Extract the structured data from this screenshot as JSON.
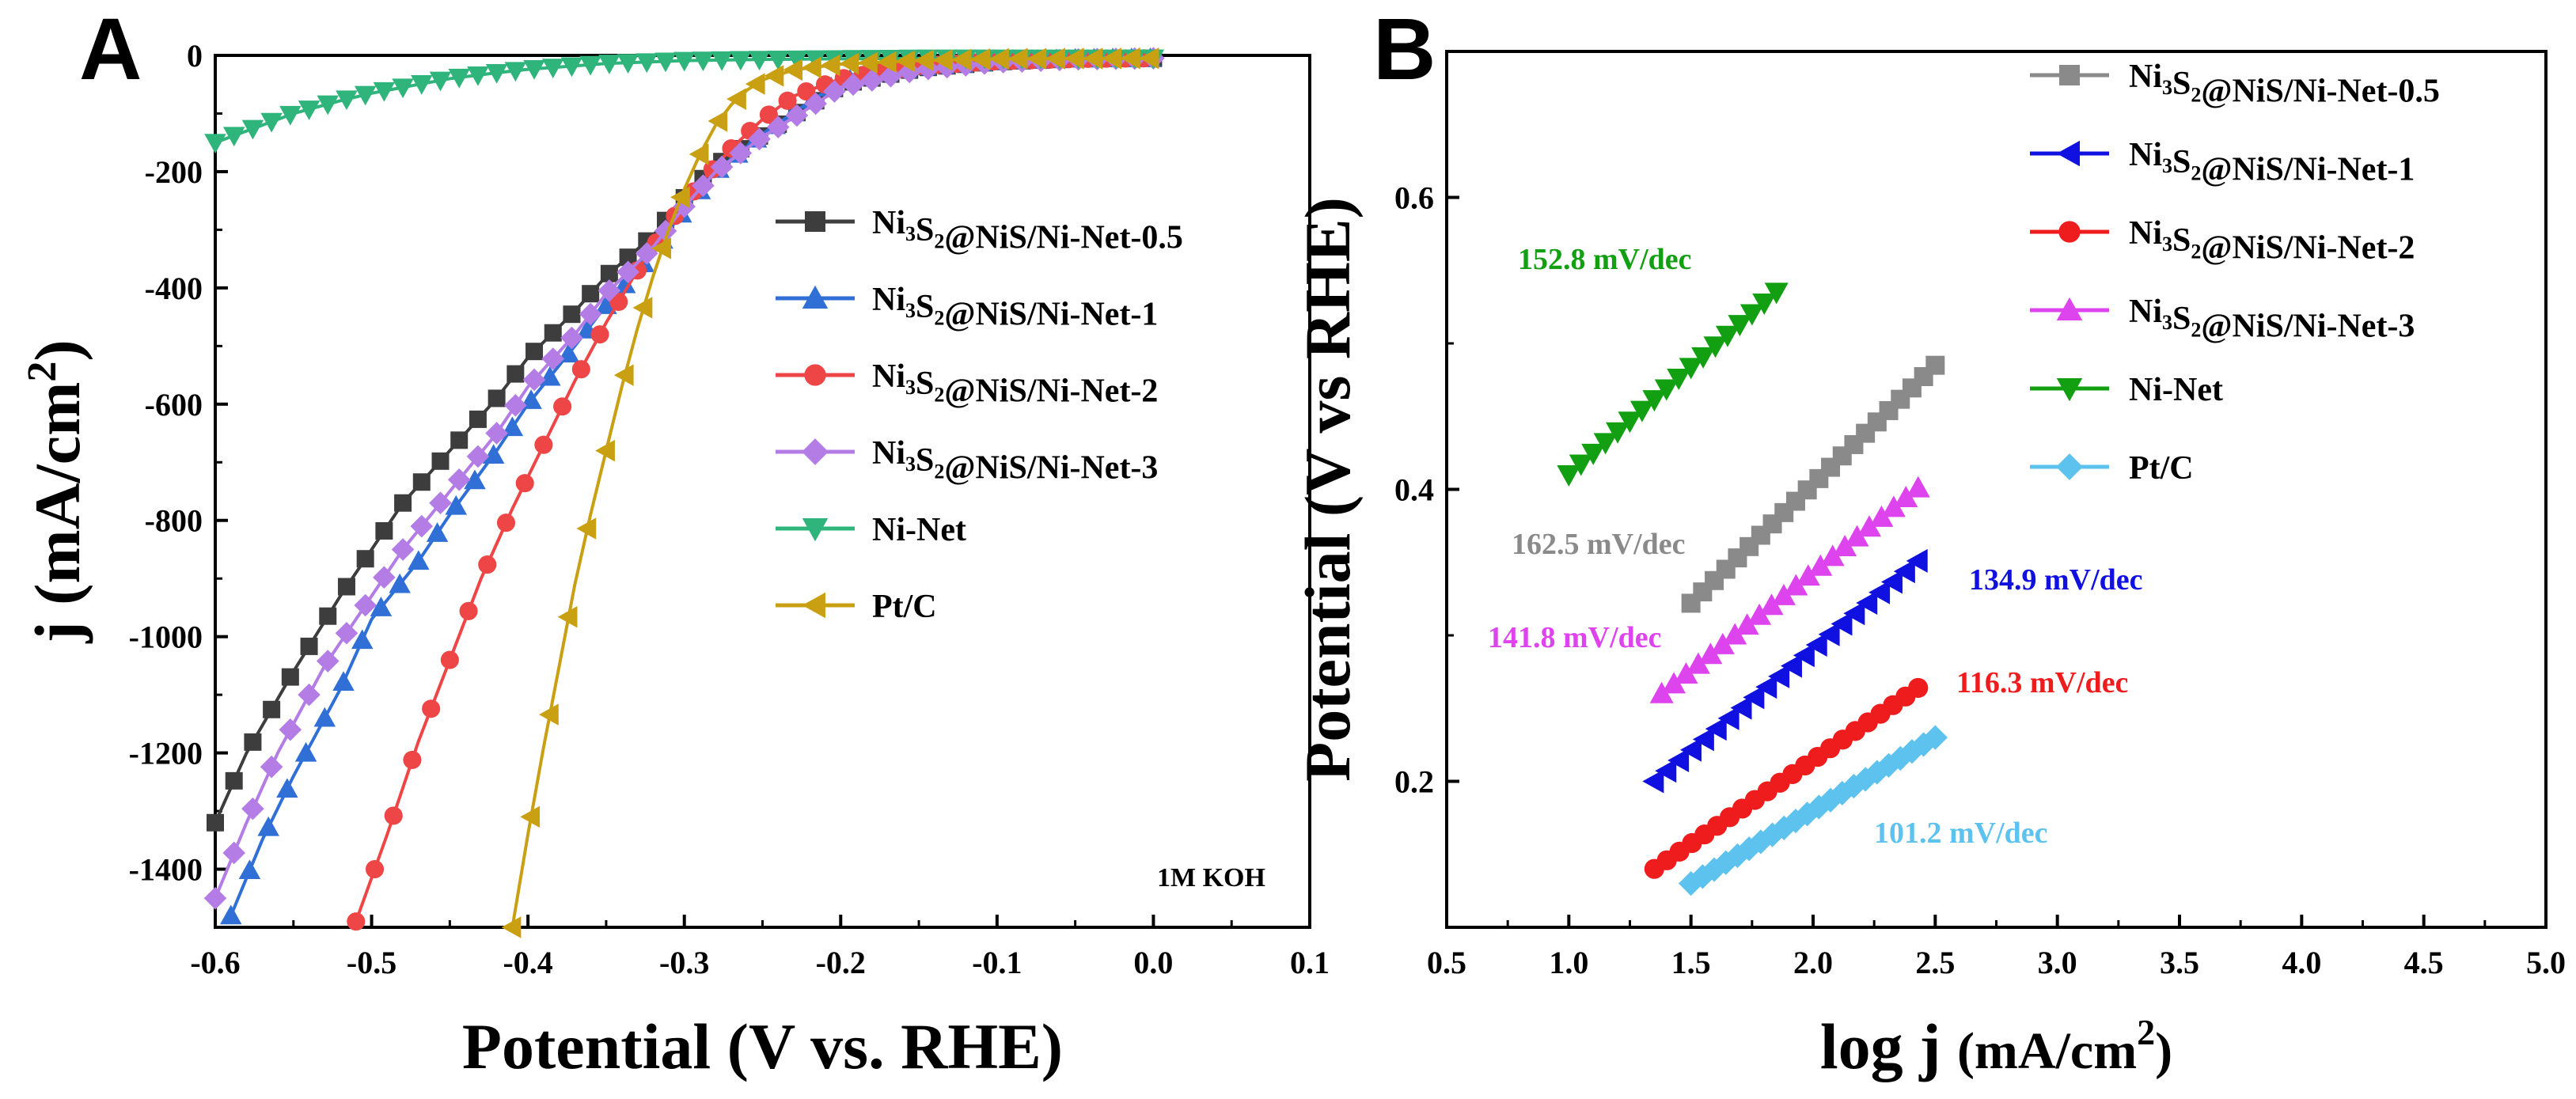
{
  "chart_data": [
    {
      "panel": "A",
      "type": "line",
      "xlabel": "Potential (V vs. RHE)",
      "ylabel": {
        "base": "j (mA/cm",
        "sup": "2",
        "tail": ")"
      },
      "xlim": [
        -0.6,
        0.1
      ],
      "ylim": [
        -1500,
        0
      ],
      "xticks": [
        -0.6,
        -0.5,
        -0.4,
        -0.3,
        -0.2,
        -0.1,
        0.0,
        0.1
      ],
      "xtick_labels": [
        "-0.6",
        "-0.5",
        "-0.4",
        "-0.3",
        "-0.2",
        "-0.1",
        "0.0",
        "0.1"
      ],
      "yticks": [
        0,
        -200,
        -400,
        -600,
        -800,
        -1000,
        -1200,
        -1400
      ],
      "ytick_labels": [
        "0",
        "-200",
        "-400",
        "-600",
        "-800",
        "-1000",
        "-1200",
        "-1400"
      ],
      "annotation": "1M KOH",
      "legend_position": "right-middle",
      "series": [
        {
          "name": "Ni3S2@NiS/Ni-Net-0.5",
          "legend": {
            "a": "Ni",
            "s1": "3",
            "b": "S",
            "s2": "2",
            "c": "@NiS/Ni-Net-0.5"
          },
          "color": "#3d3d3d",
          "marker": "square",
          "points": [
            [
              -0.6,
              -1320
            ],
            [
              -0.58,
              -1200
            ],
            [
              -0.55,
              -1060
            ],
            [
              -0.52,
              -930
            ],
            [
              -0.5,
              -850
            ],
            [
              -0.48,
              -770
            ],
            [
              -0.45,
              -680
            ],
            [
              -0.42,
              -590
            ],
            [
              -0.4,
              -520
            ],
            [
              -0.37,
              -440
            ],
            [
              -0.35,
              -380
            ],
            [
              -0.32,
              -310
            ],
            [
              -0.3,
              -245
            ],
            [
              -0.28,
              -190
            ],
            [
              -0.25,
              -135
            ],
            [
              -0.22,
              -85
            ],
            [
              -0.2,
              -50
            ],
            [
              -0.15,
              -22
            ],
            [
              -0.1,
              -11
            ],
            [
              -0.05,
              -6
            ],
            [
              0.0,
              -5
            ]
          ]
        },
        {
          "name": "Ni3S2@NiS/Ni-Net-1",
          "legend": {
            "a": "Ni",
            "s1": "3",
            "b": "S",
            "s2": "2",
            "c": "@NiS/Ni-Net-1"
          },
          "color": "#2f6fd6",
          "marker": "triangle-up",
          "points": [
            [
              -0.59,
              -1480
            ],
            [
              -0.57,
              -1350
            ],
            [
              -0.55,
              -1240
            ],
            [
              -0.52,
              -1090
            ],
            [
              -0.5,
              -970
            ],
            [
              -0.47,
              -870
            ],
            [
              -0.45,
              -790
            ],
            [
              -0.42,
              -680
            ],
            [
              -0.4,
              -600
            ],
            [
              -0.37,
              -500
            ],
            [
              -0.35,
              -430
            ],
            [
              -0.32,
              -340
            ],
            [
              -0.3,
              -265
            ],
            [
              -0.28,
              -200
            ],
            [
              -0.25,
              -135
            ],
            [
              -0.22,
              -80
            ],
            [
              -0.2,
              -45
            ],
            [
              -0.15,
              -20
            ],
            [
              -0.1,
              -10
            ],
            [
              -0.05,
              -6
            ],
            [
              0.0,
              -5
            ]
          ]
        },
        {
          "name": "Ni3S2@NiS/Ni-Net-2",
          "legend": {
            "a": "Ni",
            "s1": "3",
            "b": "S",
            "s2": "2",
            "c": "@NiS/Ni-Net-2"
          },
          "color": "#ee4646",
          "marker": "circle",
          "points": [
            [
              -0.51,
              -1490
            ],
            [
              -0.49,
              -1340
            ],
            [
              -0.47,
              -1180
            ],
            [
              -0.45,
              -1040
            ],
            [
              -0.43,
              -900
            ],
            [
              -0.41,
              -780
            ],
            [
              -0.39,
              -670
            ],
            [
              -0.37,
              -560
            ],
            [
              -0.35,
              -460
            ],
            [
              -0.33,
              -370
            ],
            [
              -0.31,
              -290
            ],
            [
              -0.29,
              -220
            ],
            [
              -0.27,
              -160
            ],
            [
              -0.25,
              -110
            ],
            [
              -0.23,
              -70
            ],
            [
              -0.2,
              -40
            ],
            [
              -0.15,
              -18
            ],
            [
              -0.1,
              -10
            ],
            [
              -0.05,
              -6
            ],
            [
              0.0,
              -5
            ]
          ]
        },
        {
          "name": "Ni3S2@NiS/Ni-Net-3",
          "legend": {
            "a": "Ni",
            "s1": "3",
            "b": "S",
            "s2": "2",
            "c": "@NiS/Ni-Net-3"
          },
          "color": "#b47de6",
          "marker": "diamond",
          "points": [
            [
              -0.6,
              -1450
            ],
            [
              -0.58,
              -1320
            ],
            [
              -0.56,
              -1200
            ],
            [
              -0.53,
              -1050
            ],
            [
              -0.5,
              -930
            ],
            [
              -0.48,
              -850
            ],
            [
              -0.45,
              -750
            ],
            [
              -0.42,
              -650
            ],
            [
              -0.4,
              -570
            ],
            [
              -0.37,
              -480
            ],
            [
              -0.35,
              -410
            ],
            [
              -0.32,
              -330
            ],
            [
              -0.3,
              -260
            ],
            [
              -0.28,
              -200
            ],
            [
              -0.25,
              -140
            ],
            [
              -0.22,
              -90
            ],
            [
              -0.2,
              -55
            ],
            [
              -0.15,
              -25
            ],
            [
              -0.1,
              -12
            ],
            [
              -0.05,
              -7
            ],
            [
              0.0,
              -5
            ]
          ]
        },
        {
          "name": "Ni-Net",
          "legend": {
            "a": "Ni-Net"
          },
          "color": "#2fb47c",
          "marker": "triangle-down",
          "points": [
            [
              -0.6,
              -150
            ],
            [
              -0.57,
              -120
            ],
            [
              -0.55,
              -100
            ],
            [
              -0.52,
              -78
            ],
            [
              -0.5,
              -65
            ],
            [
              -0.47,
              -50
            ],
            [
              -0.45,
              -40
            ],
            [
              -0.42,
              -30
            ],
            [
              -0.4,
              -24
            ],
            [
              -0.37,
              -18
            ],
            [
              -0.35,
              -14
            ],
            [
              -0.32,
              -11
            ],
            [
              -0.3,
              -9
            ],
            [
              -0.25,
              -7
            ],
            [
              -0.2,
              -6
            ],
            [
              -0.15,
              -5
            ],
            [
              -0.1,
              -5
            ],
            [
              -0.05,
              -5
            ],
            [
              0.0,
              -5
            ]
          ]
        },
        {
          "name": "Pt/C",
          "legend": {
            "a": "Pt/C"
          },
          "color": "#c9a012",
          "marker": "triangle-left",
          "points": [
            [
              -0.41,
              -1500
            ],
            [
              -0.4,
              -1340
            ],
            [
              -0.39,
              -1190
            ],
            [
              -0.38,
              -1050
            ],
            [
              -0.37,
              -910
            ],
            [
              -0.36,
              -790
            ],
            [
              -0.35,
              -680
            ],
            [
              -0.34,
              -570
            ],
            [
              -0.33,
              -470
            ],
            [
              -0.32,
              -380
            ],
            [
              -0.31,
              -300
            ],
            [
              -0.3,
              -230
            ],
            [
              -0.29,
              -170
            ],
            [
              -0.28,
              -120
            ],
            [
              -0.27,
              -85
            ],
            [
              -0.26,
              -60
            ],
            [
              -0.25,
              -42
            ],
            [
              -0.23,
              -25
            ],
            [
              -0.2,
              -15
            ],
            [
              -0.15,
              -9
            ],
            [
              -0.1,
              -6
            ],
            [
              0.0,
              -5
            ]
          ]
        }
      ]
    },
    {
      "panel": "B",
      "type": "scatter",
      "xlabel": {
        "base": "log j ",
        "paren": "(mA/cm",
        "sup": "2",
        "tail": ")"
      },
      "ylabel": "Potential (V vs RHE)",
      "xlim": [
        0.5,
        5.0
      ],
      "ylim": [
        0.1,
        0.7
      ],
      "xticks": [
        0.5,
        1.0,
        1.5,
        2.0,
        2.5,
        3.0,
        3.5,
        4.0,
        4.5,
        5.0
      ],
      "xtick_labels": [
        "0.5",
        "1.0",
        "1.5",
        "2.0",
        "2.5",
        "3.0",
        "3.5",
        "4.0",
        "4.5",
        "5.0"
      ],
      "yticks": [
        0.2,
        0.4,
        0.6
      ],
      "ytick_labels": [
        "0.2",
        "0.4",
        "0.6"
      ],
      "legend_position": "top-right",
      "series": [
        {
          "name": "Ni3S2@NiS/Ni-Net-0.5",
          "legend": {
            "a": "Ni",
            "s1": "3",
            "b": "S",
            "s2": "2",
            "c": "@NiS/Ni-Net-0.5"
          },
          "color": "#8a8a8a",
          "marker": "square",
          "x_range": [
            1.5,
            2.5
          ],
          "y_range": [
            0.322,
            0.485
          ],
          "n": 22,
          "label": "162.5 mV/dec"
        },
        {
          "name": "Ni3S2@NiS/Ni-Net-1",
          "legend": {
            "a": "Ni",
            "s1": "3",
            "b": "S",
            "s2": "2",
            "c": "@NiS/Ni-Net-1"
          },
          "color": "#1010e0",
          "marker": "triangle-left",
          "x_range": [
            1.35,
            2.43
          ],
          "y_range": [
            0.2,
            0.351
          ],
          "n": 22,
          "label": "134.9 mV/dec"
        },
        {
          "name": "Ni3S2@NiS/Ni-Net-2",
          "legend": {
            "a": "Ni",
            "s1": "3",
            "b": "S",
            "s2": "2",
            "c": "@NiS/Ni-Net-2"
          },
          "color": "#ee1c1c",
          "marker": "circle",
          "x_range": [
            1.35,
            2.43
          ],
          "y_range": [
            0.14,
            0.264
          ],
          "n": 22,
          "label": "116.3 mV/dec"
        },
        {
          "name": "Ni3S2@NiS/Ni-Net-3",
          "legend": {
            "a": "Ni",
            "s1": "3",
            "b": "S",
            "s2": "2",
            "c": "@NiS/Ni-Net-3"
          },
          "color": "#dd44ee",
          "marker": "triangle-up",
          "x_range": [
            1.38,
            2.43
          ],
          "y_range": [
            0.26,
            0.401
          ],
          "n": 22,
          "label": "141.8 mV/dec"
        },
        {
          "name": "Ni-Net",
          "legend": {
            "a": "Ni-Net"
          },
          "color": "#12a012",
          "marker": "triangle-down",
          "x_range": [
            1.0,
            1.85
          ],
          "y_range": [
            0.41,
            0.535
          ],
          "n": 18,
          "label": "152.8 mV/dec"
        },
        {
          "name": "Pt/C",
          "legend": {
            "a": "Pt/C"
          },
          "color": "#5ec2ee",
          "marker": "diamond",
          "x_range": [
            1.5,
            2.5
          ],
          "y_range": [
            0.13,
            0.23
          ],
          "n": 22,
          "label": "101.2 mV/dec"
        }
      ]
    }
  ]
}
